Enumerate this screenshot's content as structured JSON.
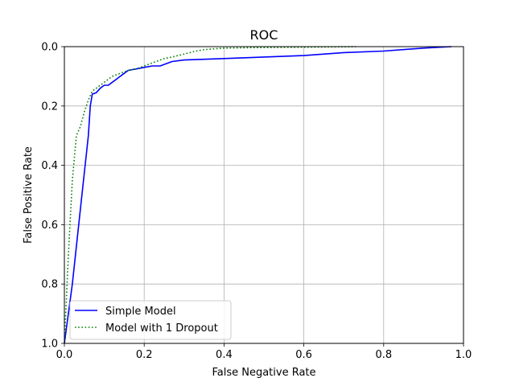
{
  "chart_data": {
    "type": "line",
    "title": "ROC",
    "xlabel": "False Negative Rate",
    "ylabel": "False Positive Rate",
    "xlim": [
      0,
      1.0
    ],
    "ylim": [
      1.0,
      0
    ],
    "y_inverted": true,
    "grid": true,
    "legend_position": "lower-left",
    "x_ticks": [
      "0.0",
      "0.2",
      "0.4",
      "0.6",
      "0.8",
      "1.0"
    ],
    "y_ticks": [
      "0.0",
      "0.2",
      "0.4",
      "0.6",
      "0.8",
      "1.0"
    ],
    "series": [
      {
        "name": "Simple Model",
        "color": "#0000ff",
        "style": "solid",
        "x": [
          0.0,
          0.02,
          0.04,
          0.06,
          0.065,
          0.07,
          0.08,
          0.09,
          0.1,
          0.11,
          0.12,
          0.13,
          0.14,
          0.15,
          0.16,
          0.18,
          0.2,
          0.22,
          0.24,
          0.25,
          0.27,
          0.3,
          0.4,
          0.5,
          0.6,
          0.7,
          0.8,
          0.9,
          0.97
        ],
        "y": [
          1.0,
          0.8,
          0.55,
          0.3,
          0.2,
          0.16,
          0.155,
          0.14,
          0.13,
          0.13,
          0.12,
          0.11,
          0.1,
          0.09,
          0.08,
          0.075,
          0.07,
          0.065,
          0.065,
          0.06,
          0.05,
          0.045,
          0.04,
          0.035,
          0.03,
          0.02,
          0.015,
          0.005,
          0.0
        ]
      },
      {
        "name": "Model with 1 Dropout",
        "color": "#008000",
        "style": "dotted",
        "x": [
          0.0,
          0.01,
          0.02,
          0.03,
          0.04,
          0.05,
          0.06,
          0.07,
          0.08,
          0.1,
          0.12,
          0.14,
          0.16,
          0.18,
          0.2,
          0.22,
          0.25,
          0.27,
          0.3,
          0.33,
          0.35,
          0.4,
          0.5,
          0.6,
          0.73
        ],
        "y": [
          1.0,
          0.7,
          0.45,
          0.3,
          0.27,
          0.22,
          0.18,
          0.15,
          0.14,
          0.12,
          0.1,
          0.09,
          0.08,
          0.075,
          0.065,
          0.055,
          0.04,
          0.035,
          0.025,
          0.015,
          0.01,
          0.005,
          0.003,
          0.002,
          0.0
        ]
      }
    ]
  }
}
